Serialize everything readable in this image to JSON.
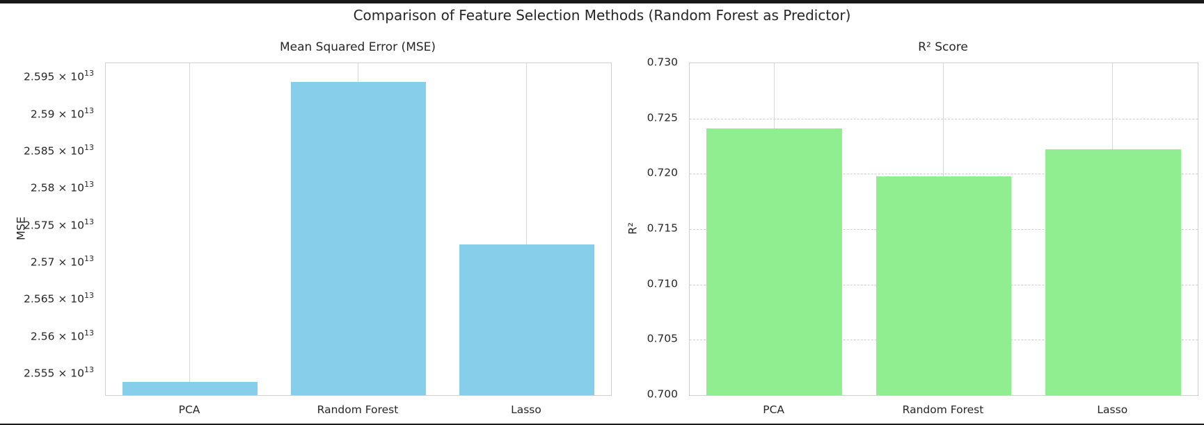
{
  "page": {
    "main_title": "Comparison of Feature Selection Methods (Random Forest as Predictor)"
  },
  "colors": {
    "background": "#ffffff",
    "text": "#262626",
    "grid": "#cccccc",
    "spine": "#cfcfcf",
    "edge_band": "#1a1a1a",
    "mse_bar": "#87CEEB",
    "r2_bar": "#90EE90"
  },
  "chart_data": [
    {
      "type": "bar",
      "title": "Mean Squared Error (MSE)",
      "xlabel": "",
      "ylabel": "MSE",
      "categories": [
        "PCA",
        "Random Forest",
        "Lasso"
      ],
      "values": [
        25540000000000.0,
        25945000000000.0,
        25725000000000.0
      ],
      "ylim": [
        25522000000000.0,
        25970000000000.0
      ],
      "yticks": [
        25550000000000.0,
        25600000000000.0,
        25650000000000.0,
        25700000000000.0,
        25750000000000.0,
        25800000000000.0,
        25850000000000.0,
        25900000000000.0,
        25950000000000.0
      ],
      "ytick_labels": [
        {
          "text": "2.555 × 10",
          "exp": "13"
        },
        {
          "text": "2.56 × 10",
          "exp": "13"
        },
        {
          "text": "2.565 × 10",
          "exp": "13"
        },
        {
          "text": "2.57 × 10",
          "exp": "13"
        },
        {
          "text": "2.575 × 10",
          "exp": "13"
        },
        {
          "text": "2.58 × 10",
          "exp": "13"
        },
        {
          "text": "2.585 × 10",
          "exp": "13"
        },
        {
          "text": "2.59 × 10",
          "exp": "13"
        },
        {
          "text": "2.595 × 10",
          "exp": "13"
        }
      ],
      "bar_color": "#87CEEB",
      "grid": {
        "vertical": "solid",
        "horizontal": "none"
      },
      "legend": "none"
    },
    {
      "type": "bar",
      "title": "R² Score",
      "xlabel": "",
      "ylabel": "R²",
      "categories": [
        "PCA",
        "Random Forest",
        "Lasso"
      ],
      "values": [
        0.7241,
        0.7198,
        0.7222
      ],
      "ylim": [
        0.7,
        0.73
      ],
      "yticks": [
        0.7,
        0.705,
        0.71,
        0.715,
        0.72,
        0.725,
        0.73
      ],
      "ytick_labels": [
        {
          "text": "0.700"
        },
        {
          "text": "0.705"
        },
        {
          "text": "0.710"
        },
        {
          "text": "0.715"
        },
        {
          "text": "0.720"
        },
        {
          "text": "0.725"
        },
        {
          "text": "0.730"
        }
      ],
      "bar_color": "#90EE90",
      "grid": {
        "vertical": "solid",
        "horizontal": "dashed"
      },
      "legend": "none"
    }
  ]
}
